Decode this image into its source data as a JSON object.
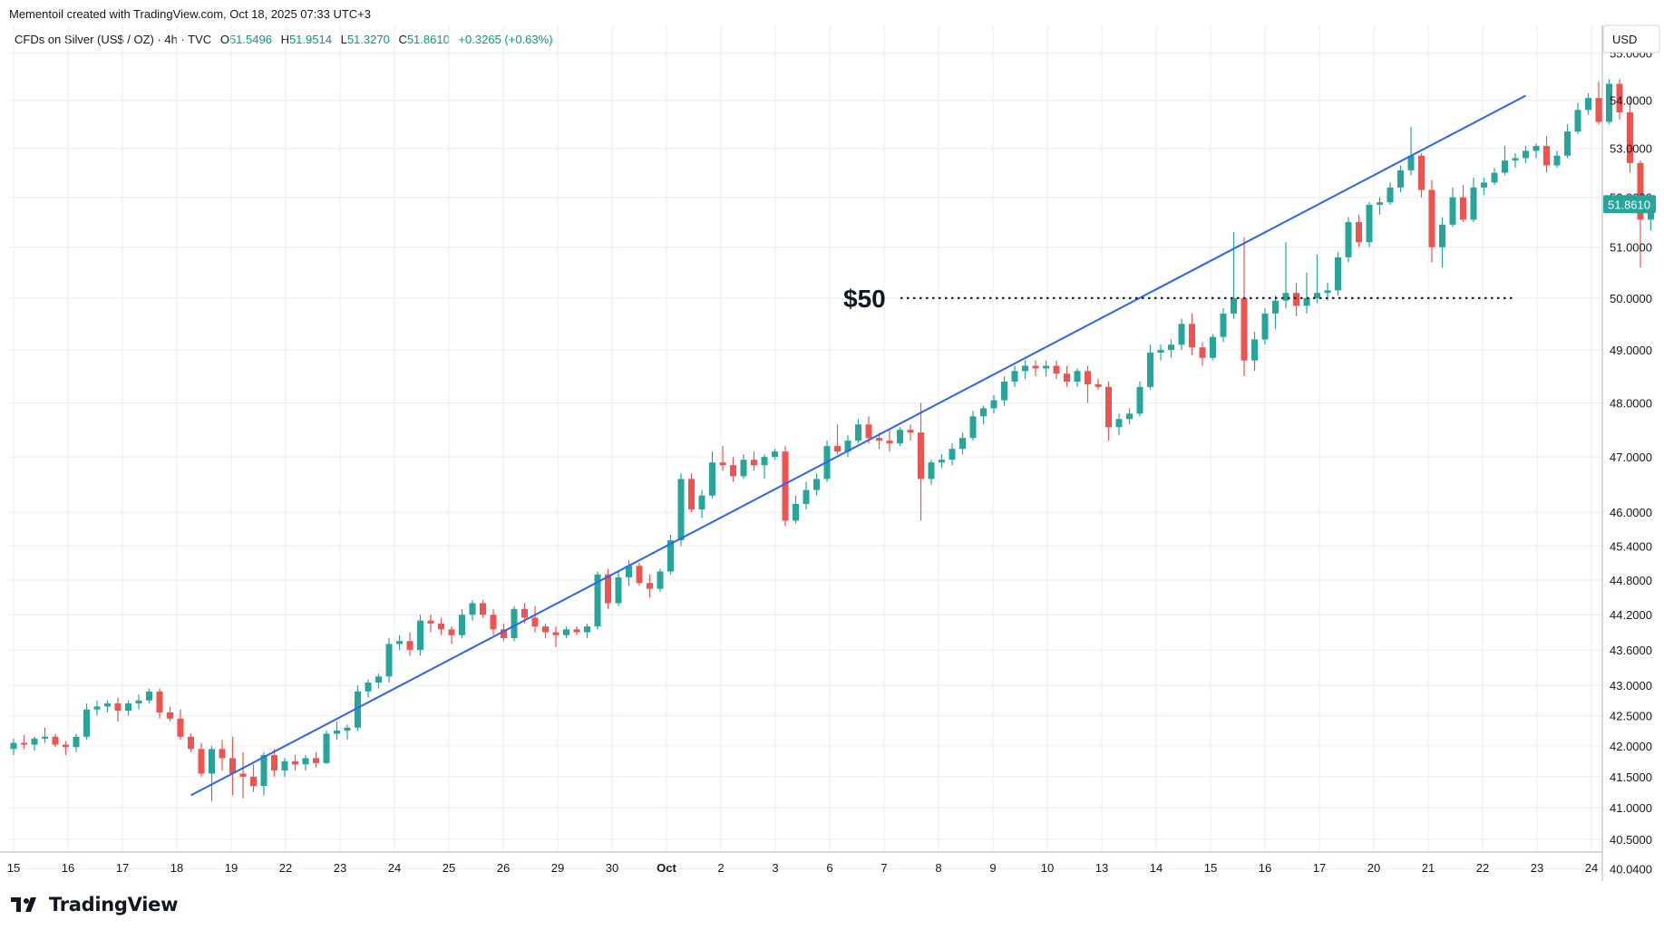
{
  "credit": "Mementoil created with TradingView.com, Oct 18, 2025 07:33 UTC+3",
  "legend": {
    "symbol": "CFDs on Silver (US$ / OZ) · 4h · TVC",
    "o_label": "O",
    "o_value": "51.5496",
    "h_label": "H",
    "h_value": "51.9514",
    "l_label": "L",
    "l_value": "51.3270",
    "c_label": "C",
    "c_value": "51.8610",
    "change": "+0.3265 (+0.63%)"
  },
  "currency": "USD",
  "brand": "TradingView",
  "colors": {
    "up": "#26a69a",
    "down": "#ef5350",
    "trendline": "#2962ff",
    "price_label": "#26a69a",
    "grid": "#e9eef3"
  },
  "chart_data": {
    "type": "candlestick",
    "title": "CFDs on Silver (US$ / OZ)",
    "interval": "4h",
    "y_scale": "log",
    "ylim": [
      40.3,
      55.6
    ],
    "y_ticks": [
      "55.0000",
      "54.0000",
      "53.0000",
      "52.0000",
      "51.0000",
      "50.0000",
      "49.0000",
      "48.0000",
      "47.0000",
      "46.0000",
      "45.4000",
      "44.8000",
      "44.2000",
      "43.6000",
      "43.0000",
      "42.5000",
      "42.0000",
      "41.5000",
      "41.0000",
      "40.5000",
      "40.0400"
    ],
    "x_ticks": [
      "15",
      "16",
      "17",
      "18",
      "19",
      "22",
      "23",
      "24",
      "25",
      "26",
      "29",
      "30",
      "Oct",
      "2",
      "3",
      "6",
      "7",
      "8",
      "9",
      "10",
      "13",
      "14",
      "15",
      "16",
      "17",
      "20",
      "21",
      "22",
      "23",
      "24"
    ],
    "last_price": "51.8610",
    "annotation_text": "$50",
    "annotation_level": 50.0,
    "trendline": {
      "from": {
        "slot": 34,
        "price": 41.2
      },
      "to": {
        "slot": 290,
        "price": 54.1
      }
    },
    "candles": [
      [
        41.95,
        42.12,
        41.85,
        42.05
      ],
      [
        42.05,
        42.18,
        41.95,
        42.02
      ],
      [
        42.02,
        42.15,
        41.92,
        42.12
      ],
      [
        42.12,
        42.3,
        42.05,
        42.15
      ],
      [
        42.15,
        42.2,
        41.98,
        42.02
      ],
      [
        42.02,
        42.08,
        41.85,
        41.98
      ],
      [
        41.98,
        42.2,
        41.9,
        42.15
      ],
      [
        42.15,
        42.7,
        42.1,
        42.6
      ],
      [
        42.6,
        42.75,
        42.5,
        42.65
      ],
      [
        42.65,
        42.75,
        42.55,
        42.7
      ],
      [
        42.7,
        42.8,
        42.4,
        42.58
      ],
      [
        42.58,
        42.75,
        42.5,
        42.7
      ],
      [
        42.7,
        42.85,
        42.6,
        42.75
      ],
      [
        42.75,
        42.95,
        42.7,
        42.9
      ],
      [
        42.9,
        42.95,
        42.45,
        42.55
      ],
      [
        42.55,
        42.65,
        42.4,
        42.45
      ],
      [
        42.45,
        42.6,
        42.1,
        42.15
      ],
      [
        42.15,
        42.2,
        41.9,
        41.95
      ],
      [
        41.95,
        42.05,
        41.5,
        41.55
      ],
      [
        41.55,
        42.0,
        41.1,
        41.95
      ],
      [
        41.95,
        42.1,
        41.6,
        41.8
      ],
      [
        41.8,
        42.15,
        41.2,
        41.55
      ],
      [
        41.55,
        41.9,
        41.15,
        41.5
      ],
      [
        41.5,
        41.7,
        41.25,
        41.35
      ],
      [
        41.35,
        41.9,
        41.2,
        41.85
      ],
      [
        41.85,
        41.95,
        41.5,
        41.6
      ],
      [
        41.6,
        41.8,
        41.5,
        41.75
      ],
      [
        41.75,
        41.85,
        41.6,
        41.7
      ],
      [
        41.7,
        41.85,
        41.6,
        41.8
      ],
      [
        41.8,
        41.9,
        41.65,
        41.72
      ],
      [
        41.72,
        42.25,
        41.7,
        42.2
      ],
      [
        42.2,
        42.4,
        42.1,
        42.25
      ],
      [
        42.25,
        42.35,
        42.1,
        42.3
      ],
      [
        42.3,
        43.0,
        42.25,
        42.9
      ],
      [
        42.9,
        43.1,
        42.8,
        43.05
      ],
      [
        43.05,
        43.2,
        42.95,
        43.15
      ],
      [
        43.15,
        43.8,
        43.05,
        43.7
      ],
      [
        43.7,
        43.85,
        43.6,
        43.75
      ],
      [
        43.75,
        43.9,
        43.5,
        43.6
      ],
      [
        43.6,
        44.2,
        43.5,
        44.1
      ],
      [
        44.1,
        44.2,
        43.9,
        44.05
      ],
      [
        44.05,
        44.15,
        43.85,
        43.95
      ],
      [
        43.95,
        44.0,
        43.7,
        43.85
      ],
      [
        43.85,
        44.3,
        43.8,
        44.2
      ],
      [
        44.2,
        44.45,
        44.1,
        44.4
      ],
      [
        44.4,
        44.45,
        44.15,
        44.2
      ],
      [
        44.2,
        44.3,
        43.85,
        43.95
      ],
      [
        43.95,
        44.05,
        43.75,
        43.8
      ],
      [
        43.8,
        44.35,
        43.75,
        44.3
      ],
      [
        44.3,
        44.4,
        44.05,
        44.15
      ],
      [
        44.15,
        44.35,
        43.9,
        44.0
      ],
      [
        44.0,
        44.05,
        43.8,
        43.9
      ],
      [
        43.9,
        44.0,
        43.65,
        43.85
      ],
      [
        43.85,
        44.0,
        43.8,
        43.95
      ],
      [
        43.95,
        44.0,
        43.85,
        43.9
      ],
      [
        43.9,
        44.05,
        43.8,
        44.0
      ],
      [
        44.0,
        44.95,
        43.95,
        44.9
      ],
      [
        44.9,
        45.0,
        44.3,
        44.4
      ],
      [
        44.4,
        44.95,
        44.35,
        44.85
      ],
      [
        44.85,
        45.15,
        44.7,
        45.05
      ],
      [
        45.05,
        45.1,
        44.7,
        44.75
      ],
      [
        44.75,
        44.9,
        44.5,
        44.65
      ],
      [
        44.65,
        45.0,
        44.6,
        44.95
      ],
      [
        44.95,
        45.6,
        44.9,
        45.5
      ],
      [
        45.5,
        46.7,
        45.4,
        46.6
      ],
      [
        46.6,
        46.7,
        46.0,
        46.05
      ],
      [
        46.05,
        46.4,
        45.9,
        46.3
      ],
      [
        46.3,
        47.1,
        46.25,
        46.9
      ],
      [
        46.9,
        47.2,
        46.75,
        46.85
      ],
      [
        46.85,
        47.0,
        46.55,
        46.65
      ],
      [
        46.65,
        47.05,
        46.6,
        46.95
      ],
      [
        46.95,
        47.1,
        46.75,
        46.85
      ],
      [
        46.85,
        47.05,
        46.6,
        47.0
      ],
      [
        47.0,
        47.15,
        46.95,
        47.1
      ],
      [
        47.1,
        47.2,
        45.75,
        45.85
      ],
      [
        45.85,
        46.3,
        45.8,
        46.15
      ],
      [
        46.15,
        46.55,
        46.05,
        46.4
      ],
      [
        46.4,
        46.7,
        46.3,
        46.6
      ],
      [
        46.6,
        47.3,
        46.55,
        47.2
      ],
      [
        47.2,
        47.6,
        47.05,
        47.1
      ],
      [
        47.1,
        47.4,
        47.0,
        47.3
      ],
      [
        47.3,
        47.7,
        47.25,
        47.6
      ],
      [
        47.6,
        47.75,
        47.25,
        47.35
      ],
      [
        47.35,
        47.45,
        47.15,
        47.3
      ],
      [
        47.3,
        47.5,
        47.1,
        47.25
      ],
      [
        47.25,
        47.55,
        47.2,
        47.5
      ],
      [
        47.5,
        47.6,
        47.3,
        47.45
      ],
      [
        47.45,
        48.0,
        45.85,
        46.6
      ],
      [
        46.6,
        46.95,
        46.5,
        46.9
      ],
      [
        46.9,
        47.05,
        46.8,
        46.95
      ],
      [
        46.95,
        47.25,
        46.85,
        47.15
      ],
      [
        47.15,
        47.45,
        47.05,
        47.35
      ],
      [
        47.35,
        47.85,
        47.3,
        47.75
      ],
      [
        47.75,
        47.95,
        47.6,
        47.9
      ],
      [
        47.9,
        48.15,
        47.8,
        48.05
      ],
      [
        48.05,
        48.5,
        47.95,
        48.4
      ],
      [
        48.4,
        48.7,
        48.3,
        48.6
      ],
      [
        48.6,
        48.8,
        48.45,
        48.7
      ],
      [
        48.7,
        48.8,
        48.5,
        48.65
      ],
      [
        48.65,
        48.8,
        48.5,
        48.7
      ],
      [
        48.7,
        48.8,
        48.45,
        48.55
      ],
      [
        48.55,
        48.7,
        48.3,
        48.4
      ],
      [
        48.4,
        48.65,
        48.3,
        48.6
      ],
      [
        48.6,
        48.7,
        48.0,
        48.35
      ],
      [
        48.35,
        48.45,
        48.25,
        48.3
      ],
      [
        48.3,
        48.4,
        47.3,
        47.55
      ],
      [
        47.55,
        47.8,
        47.4,
        47.7
      ],
      [
        47.7,
        47.9,
        47.6,
        47.8
      ],
      [
        47.8,
        48.4,
        47.75,
        48.3
      ],
      [
        48.3,
        49.1,
        48.25,
        48.95
      ],
      [
        48.95,
        49.1,
        48.8,
        49.0
      ],
      [
        49.0,
        49.2,
        48.85,
        49.1
      ],
      [
        49.1,
        49.6,
        49.0,
        49.5
      ],
      [
        49.5,
        49.7,
        48.9,
        49.05
      ],
      [
        49.05,
        49.15,
        48.7,
        48.85
      ],
      [
        48.85,
        49.3,
        48.8,
        49.25
      ],
      [
        49.25,
        49.8,
        49.15,
        49.7
      ],
      [
        49.7,
        51.3,
        49.6,
        50.0
      ],
      [
        50.0,
        51.2,
        48.5,
        48.8
      ],
      [
        48.8,
        49.35,
        48.6,
        49.2
      ],
      [
        49.2,
        49.8,
        49.1,
        49.7
      ],
      [
        49.7,
        50.05,
        49.4,
        49.95
      ],
      [
        49.95,
        51.1,
        49.8,
        50.1
      ],
      [
        50.1,
        50.3,
        49.65,
        49.85
      ],
      [
        49.85,
        50.5,
        49.7,
        50.0
      ],
      [
        50.0,
        50.85,
        49.9,
        50.1
      ],
      [
        50.1,
        50.3,
        49.95,
        50.15
      ],
      [
        50.15,
        50.9,
        50.05,
        50.8
      ],
      [
        50.8,
        51.6,
        50.7,
        51.5
      ],
      [
        51.5,
        51.65,
        51.0,
        51.1
      ],
      [
        51.1,
        51.9,
        51.0,
        51.85
      ],
      [
        51.85,
        52.0,
        51.65,
        51.9
      ],
      [
        51.9,
        52.3,
        51.85,
        52.2
      ],
      [
        52.2,
        52.65,
        52.1,
        52.55
      ],
      [
        52.55,
        53.45,
        52.45,
        52.85
      ],
      [
        52.85,
        52.9,
        52.0,
        52.15
      ],
      [
        52.15,
        52.35,
        50.7,
        51.0
      ],
      [
        51.0,
        51.6,
        50.6,
        51.45
      ],
      [
        51.45,
        52.2,
        51.4,
        52.0
      ],
      [
        52.0,
        52.25,
        51.5,
        51.55
      ],
      [
        51.55,
        52.4,
        51.5,
        52.2
      ],
      [
        52.2,
        52.4,
        52.05,
        52.3
      ],
      [
        52.3,
        52.6,
        52.25,
        52.5
      ],
      [
        52.5,
        53.05,
        52.45,
        52.75
      ],
      [
        52.75,
        52.9,
        52.6,
        52.8
      ],
      [
        52.8,
        53.05,
        52.7,
        52.95
      ],
      [
        52.95,
        53.1,
        52.8,
        53.05
      ],
      [
        53.05,
        53.25,
        52.5,
        52.65
      ],
      [
        52.65,
        52.95,
        52.6,
        52.85
      ],
      [
        52.85,
        53.5,
        52.8,
        53.35
      ],
      [
        53.35,
        53.95,
        53.3,
        53.8
      ],
      [
        53.8,
        54.15,
        53.7,
        54.05
      ],
      [
        54.05,
        54.4,
        53.5,
        53.55
      ],
      [
        53.55,
        54.45,
        53.5,
        54.35
      ],
      [
        54.35,
        54.45,
        53.6,
        53.75
      ],
      [
        53.75,
        54.1,
        52.5,
        52.7
      ],
      [
        52.7,
        52.75,
        50.6,
        51.55
      ],
      [
        51.55,
        51.9514,
        51.327,
        51.861
      ]
    ]
  }
}
